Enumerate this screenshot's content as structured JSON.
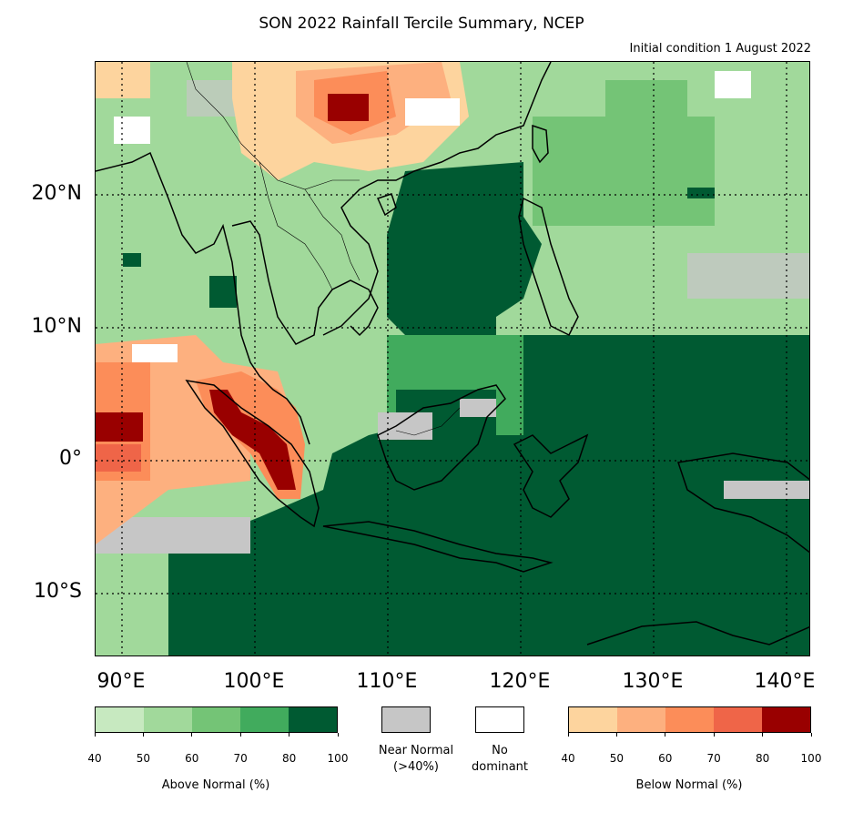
{
  "title": "SON 2022 Rainfall Tercile Summary, NCEP",
  "subtitle": "Initial condition 1 August 2022",
  "lat_labels": [
    "20°N",
    "10°N",
    "0°",
    "10°S"
  ],
  "lon_labels": [
    "90°E",
    "100°E",
    "110°E",
    "120°E",
    "130°E",
    "140°E"
  ],
  "above_normal": {
    "title": "Above Normal (%)",
    "ticks": [
      "40",
      "50",
      "60",
      "70",
      "80",
      "100"
    ],
    "colors": [
      "#c7e9c0",
      "#a1d99b",
      "#74c476",
      "#41ab5d",
      "#005a32"
    ]
  },
  "near_normal": {
    "label_line1": "Near Normal",
    "label_line2": "(>40%)",
    "color": "#c6c6c6"
  },
  "no_dominant": {
    "label_line1": "No",
    "label_line2": "dominant",
    "color": "#ffffff"
  },
  "below_normal": {
    "title": "Below Normal (%)",
    "ticks": [
      "40",
      "50",
      "60",
      "70",
      "80",
      "100"
    ],
    "colors": [
      "#fdd49e",
      "#fdb07f",
      "#fc8d59",
      "#ef6548",
      "#990000"
    ]
  },
  "map_colors": {
    "ocean_dark_green": "#005a32",
    "green_70": "#41ab5d",
    "green_60": "#74c476",
    "green_50": "#a1d99b",
    "green_40": "#c7e9c0",
    "near_normal_gray": "#c6c6c6",
    "orange_40": "#fdd49e",
    "orange_50": "#fdb07f",
    "orange_60": "#fc8d59",
    "red_70": "#ef6548",
    "dark_red": "#990000"
  }
}
